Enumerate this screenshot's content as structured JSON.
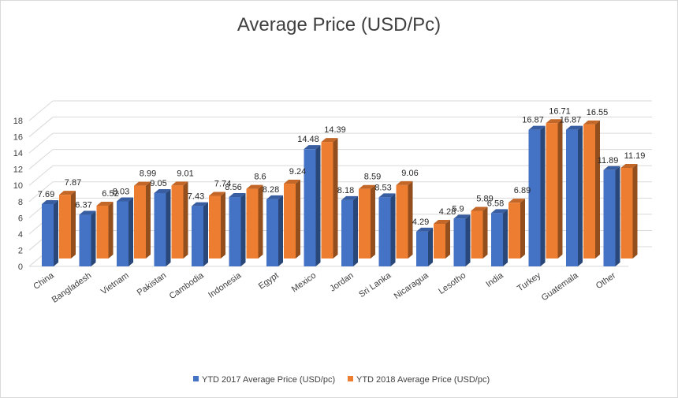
{
  "chart_data": {
    "type": "bar",
    "title": "Average Price (USD/Pc)",
    "xlabel": "",
    "ylabel": "",
    "ylim": [
      0,
      18
    ],
    "yticks": [
      0,
      2,
      4,
      6,
      8,
      10,
      12,
      14,
      16,
      18
    ],
    "grid": true,
    "legend_position": "bottom",
    "categories": [
      "China",
      "Bangladesh",
      "Vietnam",
      "Pakistan",
      "Cambodia",
      "Indonesia",
      "Egypt",
      "Mexico",
      "Jordan",
      "Sri Lanka",
      "Nicaragua",
      "Lesotho",
      "India",
      "Turkey",
      "Guatemala",
      "Other"
    ],
    "series": [
      {
        "name": "YTD 2017 Average Price (USD/pc)",
        "color": "#4472C4",
        "values": [
          7.69,
          6.37,
          8.03,
          9.05,
          7.43,
          8.56,
          8.28,
          14.48,
          8.18,
          8.53,
          4.29,
          5.9,
          6.58,
          16.87,
          16.87,
          11.89
        ]
      },
      {
        "name": "YTD 2018 Average Price (USD/pc)",
        "color": "#ED7D31",
        "values": [
          7.87,
          6.52,
          8.99,
          9.01,
          7.74,
          8.6,
          9.24,
          14.39,
          8.59,
          9.06,
          4.28,
          5.89,
          6.89,
          16.71,
          16.55,
          11.19
        ]
      }
    ]
  }
}
